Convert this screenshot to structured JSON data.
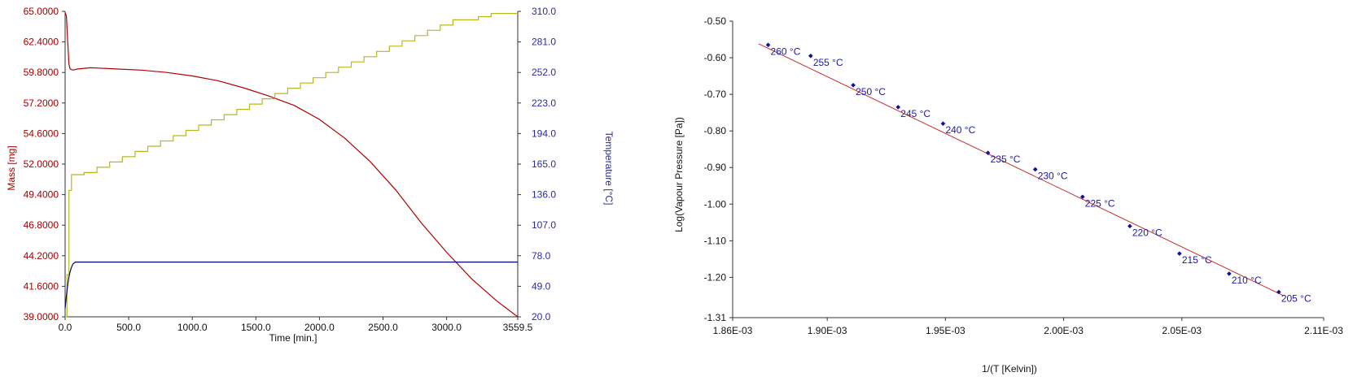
{
  "chart_data": [
    {
      "type": "line",
      "title": "",
      "xlabel": "Time [min.]",
      "ylabel": "Mass [mg]",
      "y2label": "Temperature [°C]",
      "xlim": [
        0,
        3559.5
      ],
      "ylim": [
        39.0,
        65.0
      ],
      "y2lim": [
        20.0,
        310.0
      ],
      "x_ticks": [
        "0.0",
        "500.0",
        "1000.0",
        "1500.0",
        "2000.0",
        "2500.0",
        "3000.0",
        "3559.5"
      ],
      "x_tick_values": [
        0,
        500,
        1000,
        1500,
        2000,
        2500,
        3000,
        3559.5
      ],
      "y_ticks": [
        "39.0000",
        "41.6000",
        "44.2000",
        "46.8000",
        "49.4000",
        "52.0000",
        "54.6000",
        "57.2000",
        "59.8000",
        "62.4000",
        "65.0000"
      ],
      "y_tick_values": [
        39.0,
        41.6,
        44.2,
        46.8,
        49.4,
        52.0,
        54.6,
        57.2,
        59.8,
        62.4,
        65.0
      ],
      "y2_ticks": [
        "20.0",
        "49.0",
        "78.0",
        "107.0",
        "136.0",
        "165.0",
        "194.0",
        "223.0",
        "252.0",
        "281.0",
        "310.0"
      ],
      "y2_tick_values": [
        20,
        49,
        78,
        107,
        136,
        165,
        194,
        223,
        252,
        281,
        310
      ],
      "grid": false,
      "legend": "none",
      "series": [
        {
          "axis": "left",
          "color": "#b00000",
          "x": [
            0,
            10,
            20,
            30,
            40,
            60,
            100,
            200,
            400,
            600,
            800,
            1000,
            1200,
            1400,
            1600,
            1800,
            2000,
            2200,
            2400,
            2600,
            2800,
            3000,
            3200,
            3400,
            3559.5
          ],
          "y": [
            64.9,
            64.6,
            62.5,
            60.5,
            60.1,
            60.0,
            60.1,
            60.2,
            60.1,
            60.0,
            59.8,
            59.5,
            59.1,
            58.5,
            57.8,
            57.0,
            55.8,
            54.2,
            52.2,
            49.8,
            47.0,
            44.5,
            42.2,
            40.3,
            39.0
          ]
        },
        {
          "axis": "right",
          "color": "#b8b820",
          "step": true,
          "x": [
            0,
            15,
            30,
            50,
            100,
            150,
            250,
            350,
            450,
            550,
            650,
            750,
            850,
            950,
            1050,
            1150,
            1250,
            1350,
            1450,
            1550,
            1650,
            1750,
            1850,
            1950,
            2050,
            2150,
            2250,
            2350,
            2450,
            2550,
            2650,
            2750,
            2850,
            2950,
            3050,
            3150,
            3250,
            3350,
            3450,
            3559.5
          ],
          "y": [
            20,
            60,
            140,
            155,
            155,
            157,
            162,
            167,
            172,
            177,
            182,
            187,
            192,
            197,
            202,
            207,
            212,
            217,
            222,
            227,
            232,
            237,
            242,
            247,
            252,
            257,
            262,
            267,
            272,
            277,
            282,
            287,
            292,
            297,
            302,
            302,
            305,
            308,
            308,
            308
          ]
        },
        {
          "axis": "right",
          "color": "#00007a",
          "x": [
            0,
            10,
            20,
            30,
            40,
            50,
            60,
            70,
            80,
            100,
            3559.5
          ],
          "y": [
            28,
            40,
            50,
            58,
            63,
            67,
            70,
            71,
            72,
            72,
            72
          ]
        }
      ]
    },
    {
      "type": "scatter",
      "title": "",
      "xlabel": "1/(T [Kelvin])",
      "ylabel": "Log(Vapour Pressure [Pa])",
      "xlim": [
        0.00186,
        0.00211
      ],
      "ylim": [
        -1.31,
        -0.5
      ],
      "x_ticks": [
        "1.86E-03",
        "1.90E-03",
        "1.95E-03",
        "2.00E-03",
        "2.05E-03",
        "2.11E-03"
      ],
      "x_tick_values": [
        0.00186,
        0.0019,
        0.00195,
        0.002,
        0.00205,
        0.00211
      ],
      "y_ticks": [
        "-0.50",
        "-0.60",
        "-0.70",
        "-0.80",
        "-0.90",
        "-1.00",
        "-1.10",
        "-1.20",
        "-1.31"
      ],
      "y_tick_values": [
        -0.5,
        -0.6,
        -0.7,
        -0.8,
        -0.9,
        -1.0,
        -1.1,
        -1.2,
        -1.31
      ],
      "grid": false,
      "legend": "none",
      "point_color": "#1010a0",
      "fit_color": "#c03030",
      "fit_line": {
        "x": [
          0.001871,
          0.002093
        ],
        "y": [
          -0.562,
          -1.25
        ]
      },
      "points": [
        {
          "label": "260 °C",
          "x": 0.001875,
          "y": -0.565
        },
        {
          "label": "255 °C",
          "x": 0.001893,
          "y": -0.595
        },
        {
          "label": "250 °C",
          "x": 0.001911,
          "y": -0.675
        },
        {
          "label": "245 °C",
          "x": 0.00193,
          "y": -0.735
        },
        {
          "label": "240 °C",
          "x": 0.001949,
          "y": -0.78
        },
        {
          "label": "235 °C",
          "x": 0.001968,
          "y": -0.86
        },
        {
          "label": "230 °C",
          "x": 0.001988,
          "y": -0.905
        },
        {
          "label": "225 °C",
          "x": 0.002008,
          "y": -0.98
        },
        {
          "label": "220 °C",
          "x": 0.002028,
          "y": -1.06
        },
        {
          "label": "215 °C",
          "x": 0.002049,
          "y": -1.135
        },
        {
          "label": "210 °C",
          "x": 0.00207,
          "y": -1.19
        },
        {
          "label": "205 °C",
          "x": 0.002091,
          "y": -1.24
        }
      ]
    }
  ]
}
